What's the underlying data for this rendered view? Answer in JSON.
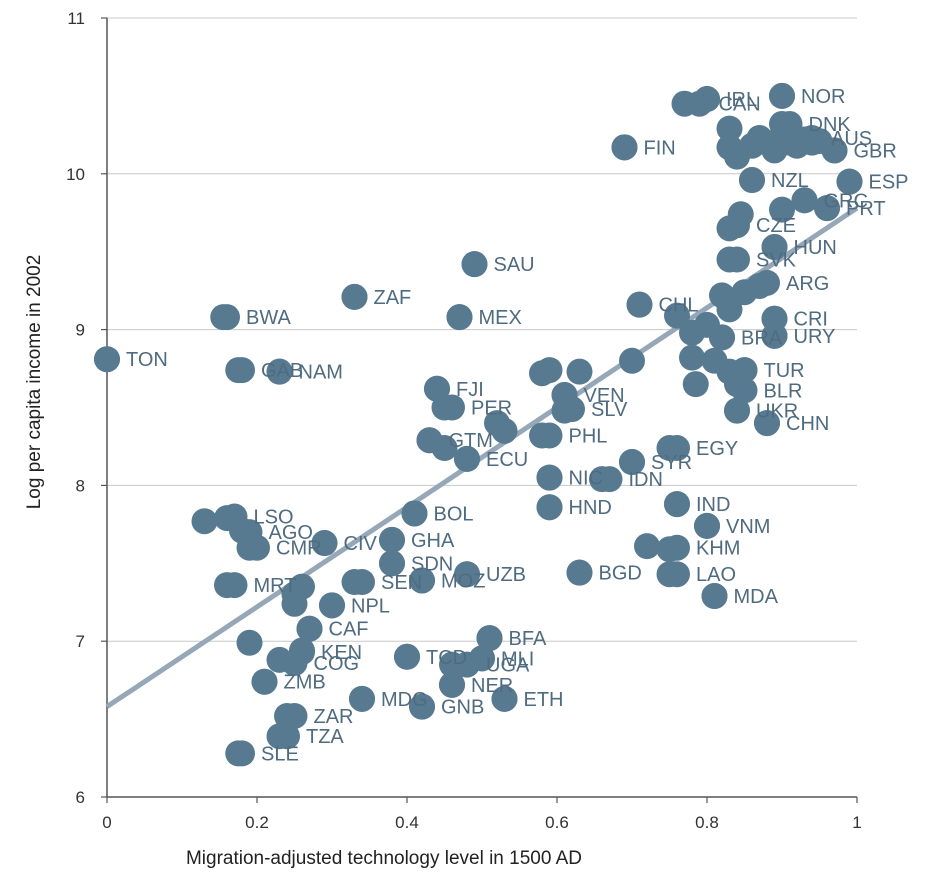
{
  "chart_data": {
    "type": "scatter",
    "xlabel": "Migration-adjusted technology level in 1500 AD",
    "ylabel": "Log per capita income in 2002",
    "xlim": [
      0,
      1
    ],
    "ylim": [
      6,
      11
    ],
    "x_ticks": [
      "0",
      "0.2",
      "0.4",
      "0.6",
      "0.8",
      "1"
    ],
    "y_ticks": [
      "6",
      "7",
      "8",
      "9",
      "10",
      "11"
    ],
    "grid": "horizontal",
    "colors": {
      "marker": "#587a91",
      "label": "#4f6b80",
      "fit_line": "#96a8b8",
      "grid": "#c8c8c8",
      "axis": "#555555"
    },
    "fit_line": {
      "x": [
        0,
        1
      ],
      "y": [
        6.58,
        9.78
      ]
    },
    "labels": [
      {
        "text": "IRL",
        "x": 0.8,
        "y": 10.48
      },
      {
        "text": "CAN",
        "x": 0.79,
        "y": 10.45
      },
      {
        "text": "NOR",
        "x": 0.9,
        "y": 10.5
      },
      {
        "text": "DNK",
        "x": 0.91,
        "y": 10.32
      },
      {
        "text": "AUS",
        "x": 0.94,
        "y": 10.23
      },
      {
        "text": "GBR",
        "x": 0.97,
        "y": 10.15
      },
      {
        "text": "FIN",
        "x": 0.69,
        "y": 10.17
      },
      {
        "text": "NZL",
        "x": 0.86,
        "y": 9.96
      },
      {
        "text": "ESP",
        "x": 0.99,
        "y": 9.95
      },
      {
        "text": "GRC",
        "x": 0.93,
        "y": 9.83
      },
      {
        "text": "PRT",
        "x": 0.96,
        "y": 9.78
      },
      {
        "text": "CZE",
        "x": 0.84,
        "y": 9.67
      },
      {
        "text": "HUN",
        "x": 0.89,
        "y": 9.53
      },
      {
        "text": "SVK",
        "x": 0.84,
        "y": 9.45
      },
      {
        "text": "SAU",
        "x": 0.49,
        "y": 9.42
      },
      {
        "text": "ARG",
        "x": 0.88,
        "y": 9.3
      },
      {
        "text": "ZAF",
        "x": 0.33,
        "y": 9.21
      },
      {
        "text": "CHL",
        "x": 0.71,
        "y": 9.16
      },
      {
        "text": "BWA",
        "x": 0.16,
        "y": 9.08
      },
      {
        "text": "MEX",
        "x": 0.47,
        "y": 9.08
      },
      {
        "text": "CRI",
        "x": 0.89,
        "y": 9.07
      },
      {
        "text": "URY",
        "x": 0.89,
        "y": 8.96
      },
      {
        "text": "BRA",
        "x": 0.82,
        "y": 8.95
      },
      {
        "text": "TON",
        "x": 0.0,
        "y": 8.81
      },
      {
        "text": "GAB",
        "x": 0.18,
        "y": 8.74
      },
      {
        "text": "NAM",
        "x": 0.23,
        "y": 8.73
      },
      {
        "text": "TUR",
        "x": 0.85,
        "y": 8.74
      },
      {
        "text": "FJI",
        "x": 0.44,
        "y": 8.62
      },
      {
        "text": "VEN",
        "x": 0.61,
        "y": 8.58
      },
      {
        "text": "BLR",
        "x": 0.85,
        "y": 8.61
      },
      {
        "text": "PER",
        "x": 0.46,
        "y": 8.5
      },
      {
        "text": "SLV",
        "x": 0.62,
        "y": 8.49
      },
      {
        "text": "UKR",
        "x": 0.84,
        "y": 8.48
      },
      {
        "text": "CHN",
        "x": 0.88,
        "y": 8.4
      },
      {
        "text": "PHL",
        "x": 0.59,
        "y": 8.32
      },
      {
        "text": "GTM",
        "x": 0.43,
        "y": 8.29
      },
      {
        "text": "EGY",
        "x": 0.76,
        "y": 8.24
      },
      {
        "text": "ECU",
        "x": 0.48,
        "y": 8.17
      },
      {
        "text": "SYR",
        "x": 0.7,
        "y": 8.15
      },
      {
        "text": "NIC",
        "x": 0.59,
        "y": 8.05
      },
      {
        "text": "IDN",
        "x": 0.67,
        "y": 8.04
      },
      {
        "text": "IND",
        "x": 0.76,
        "y": 7.88
      },
      {
        "text": "HND",
        "x": 0.59,
        "y": 7.86
      },
      {
        "text": "BOL",
        "x": 0.41,
        "y": 7.82
      },
      {
        "text": "LSO",
        "x": 0.17,
        "y": 7.8
      },
      {
        "text": "VNM",
        "x": 0.8,
        "y": 7.74
      },
      {
        "text": "AGO",
        "x": 0.19,
        "y": 7.7
      },
      {
        "text": "CMR",
        "x": 0.2,
        "y": 7.6
      },
      {
        "text": "GHA",
        "x": 0.38,
        "y": 7.65
      },
      {
        "text": "CIV",
        "x": 0.29,
        "y": 7.63
      },
      {
        "text": "KHM",
        "x": 0.76,
        "y": 7.6
      },
      {
        "text": "SDN",
        "x": 0.38,
        "y": 7.5
      },
      {
        "text": "UZB",
        "x": 0.48,
        "y": 7.43
      },
      {
        "text": "BGD",
        "x": 0.63,
        "y": 7.44
      },
      {
        "text": "LAO",
        "x": 0.76,
        "y": 7.43
      },
      {
        "text": "MRT",
        "x": 0.17,
        "y": 7.36
      },
      {
        "text": "SEN",
        "x": 0.34,
        "y": 7.38
      },
      {
        "text": "MOZ",
        "x": 0.42,
        "y": 7.39
      },
      {
        "text": "MDA",
        "x": 0.81,
        "y": 7.29
      },
      {
        "text": "NPL",
        "x": 0.3,
        "y": 7.23
      },
      {
        "text": "CAF",
        "x": 0.27,
        "y": 7.08
      },
      {
        "text": "BFA",
        "x": 0.51,
        "y": 7.02
      },
      {
        "text": "KEN",
        "x": 0.26,
        "y": 6.93
      },
      {
        "text": "TCD",
        "x": 0.4,
        "y": 6.9
      },
      {
        "text": "MLI",
        "x": 0.5,
        "y": 6.89
      },
      {
        "text": "COG",
        "x": 0.25,
        "y": 6.86
      },
      {
        "text": "UGA",
        "x": 0.48,
        "y": 6.85
      },
      {
        "text": "ZMB",
        "x": 0.21,
        "y": 6.74
      },
      {
        "text": "NER",
        "x": 0.46,
        "y": 6.72
      },
      {
        "text": "MDG",
        "x": 0.34,
        "y": 6.63
      },
      {
        "text": "GNB",
        "x": 0.42,
        "y": 6.58
      },
      {
        "text": "ETH",
        "x": 0.53,
        "y": 6.63
      },
      {
        "text": "ZAR",
        "x": 0.25,
        "y": 6.52
      },
      {
        "text": "TZA",
        "x": 0.24,
        "y": 6.39
      },
      {
        "text": "SLE",
        "x": 0.18,
        "y": 6.28
      }
    ],
    "points": [
      [
        0.0,
        8.81
      ],
      [
        0.13,
        7.77
      ],
      [
        0.16,
        7.36
      ],
      [
        0.16,
        7.79
      ],
      [
        0.155,
        9.08
      ],
      [
        0.175,
        8.74
      ],
      [
        0.175,
        6.28
      ],
      [
        0.18,
        7.71
      ],
      [
        0.19,
        7.6
      ],
      [
        0.19,
        6.99
      ],
      [
        0.21,
        6.74
      ],
      [
        0.23,
        8.73
      ],
      [
        0.23,
        6.39
      ],
      [
        0.24,
        6.52
      ],
      [
        0.23,
        6.88
      ],
      [
        0.25,
        7.3
      ],
      [
        0.26,
        7.35
      ],
      [
        0.25,
        7.24
      ],
      [
        0.26,
        6.94
      ],
      [
        0.27,
        7.08
      ],
      [
        0.29,
        7.63
      ],
      [
        0.3,
        7.23
      ],
      [
        0.33,
        9.21
      ],
      [
        0.33,
        7.38
      ],
      [
        0.34,
        6.63
      ],
      [
        0.38,
        7.65
      ],
      [
        0.38,
        7.5
      ],
      [
        0.4,
        6.9
      ],
      [
        0.41,
        7.82
      ],
      [
        0.42,
        7.39
      ],
      [
        0.42,
        6.58
      ],
      [
        0.43,
        8.29
      ],
      [
        0.44,
        8.62
      ],
      [
        0.45,
        8.5
      ],
      [
        0.45,
        8.24
      ],
      [
        0.46,
        6.85
      ],
      [
        0.46,
        6.72
      ],
      [
        0.47,
        9.08
      ],
      [
        0.48,
        8.17
      ],
      [
        0.48,
        7.43
      ],
      [
        0.49,
        9.42
      ],
      [
        0.5,
        6.89
      ],
      [
        0.51,
        7.02
      ],
      [
        0.52,
        8.4
      ],
      [
        0.53,
        8.35
      ],
      [
        0.53,
        6.63
      ],
      [
        0.58,
        8.72
      ],
      [
        0.58,
        8.32
      ],
      [
        0.59,
        8.74
      ],
      [
        0.59,
        8.05
      ],
      [
        0.59,
        7.86
      ],
      [
        0.61,
        8.58
      ],
      [
        0.61,
        8.48
      ],
      [
        0.63,
        8.73
      ],
      [
        0.63,
        7.44
      ],
      [
        0.66,
        8.04
      ],
      [
        0.7,
        8.8
      ],
      [
        0.7,
        8.15
      ],
      [
        0.71,
        9.16
      ],
      [
        0.69,
        10.17
      ],
      [
        0.72,
        7.61
      ],
      [
        0.75,
        7.59
      ],
      [
        0.75,
        7.43
      ],
      [
        0.75,
        8.24
      ],
      [
        0.76,
        7.88
      ],
      [
        0.76,
        9.09
      ],
      [
        0.77,
        10.45
      ],
      [
        0.78,
        8.82
      ],
      [
        0.78,
        8.98
      ],
      [
        0.785,
        8.65
      ],
      [
        0.8,
        10.48
      ],
      [
        0.8,
        7.74
      ],
      [
        0.8,
        9.03
      ],
      [
        0.81,
        7.29
      ],
      [
        0.81,
        8.8
      ],
      [
        0.82,
        9.22
      ],
      [
        0.82,
        8.95
      ],
      [
        0.83,
        10.17
      ],
      [
        0.83,
        10.29
      ],
      [
        0.83,
        9.65
      ],
      [
        0.83,
        9.45
      ],
      [
        0.83,
        9.13
      ],
      [
        0.83,
        8.73
      ],
      [
        0.84,
        8.65
      ],
      [
        0.84,
        8.48
      ],
      [
        0.84,
        10.11
      ],
      [
        0.845,
        9.74
      ],
      [
        0.85,
        9.24
      ],
      [
        0.85,
        8.74
      ],
      [
        0.86,
        9.96
      ],
      [
        0.86,
        10.18
      ],
      [
        0.87,
        9.28
      ],
      [
        0.87,
        10.23
      ],
      [
        0.88,
        8.4
      ],
      [
        0.88,
        10.2
      ],
      [
        0.89,
        9.53
      ],
      [
        0.89,
        9.07
      ],
      [
        0.89,
        8.96
      ],
      [
        0.89,
        10.15
      ],
      [
        0.9,
        10.5
      ],
      [
        0.9,
        10.32
      ],
      [
        0.9,
        9.77
      ],
      [
        0.91,
        10.25
      ],
      [
        0.91,
        10.2
      ],
      [
        0.92,
        10.18
      ],
      [
        0.93,
        10.22
      ],
      [
        0.93,
        9.83
      ],
      [
        0.94,
        10.2
      ],
      [
        0.95,
        10.21
      ],
      [
        0.96,
        9.78
      ],
      [
        0.97,
        10.15
      ],
      [
        0.99,
        9.95
      ]
    ]
  }
}
